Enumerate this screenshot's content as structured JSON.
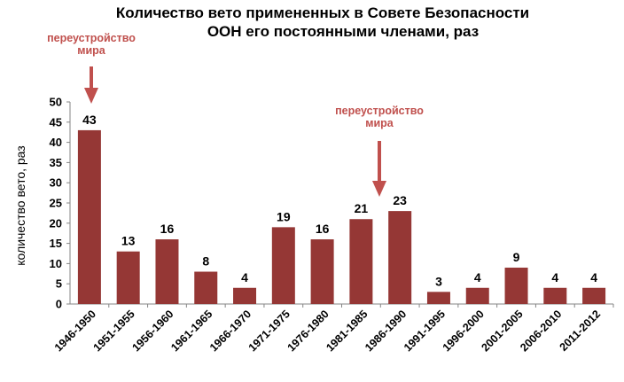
{
  "chart_data": {
    "type": "bar",
    "title_lines": [
      "Количество вето примененных в Совете Безопасности",
      "ООН его постоянными членами, раз"
    ],
    "xlabel": "",
    "ylabel": "количество  вето, раз",
    "categories": [
      "1946-1950",
      "1951-1955",
      "1956-1960",
      "1961-1965",
      "1966-1970",
      "1971-1975",
      "1976-1980",
      "1981-1985",
      "1986-1990",
      "1991-1995",
      "1996-2000",
      "2001-2005",
      "2006-2010",
      "2011-2012"
    ],
    "values": [
      43,
      13,
      16,
      8,
      4,
      19,
      16,
      21,
      23,
      3,
      4,
      9,
      4,
      4
    ],
    "data_labels": [
      "43",
      "13",
      "16",
      "8",
      "4",
      "19",
      "16",
      "21",
      "23",
      "3",
      "4",
      "9",
      "4",
      "4"
    ],
    "yticks": [
      "0",
      "5",
      "10",
      "15",
      "20",
      "25",
      "30",
      "35",
      "40",
      "45",
      "50"
    ],
    "ylim": [
      0,
      50
    ],
    "grid": false,
    "legend": "none",
    "colors": {
      "bar": "#953735",
      "annotation": "#c0504d",
      "axis": "#868686"
    },
    "annotations": [
      {
        "lines": [
          "переустройство",
          "мира"
        ],
        "category": "1946-1950"
      },
      {
        "lines": [
          "переустройство",
          "мира"
        ],
        "category": "1986-1990"
      }
    ]
  }
}
